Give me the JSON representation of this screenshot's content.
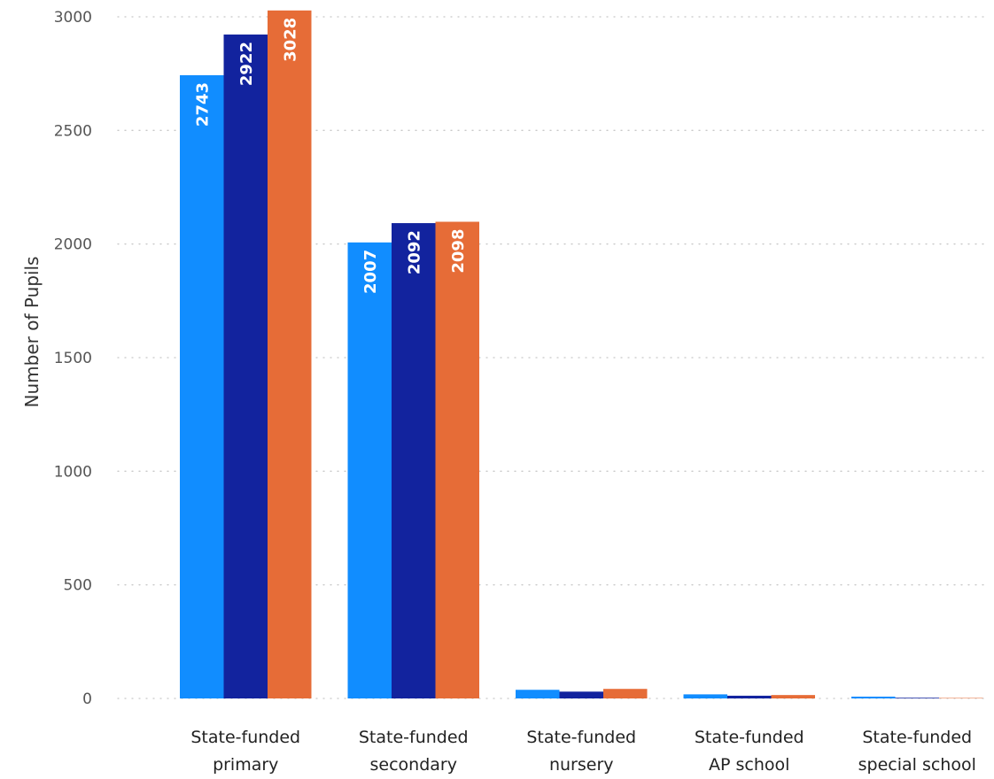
{
  "chart_data": {
    "type": "bar",
    "title": "",
    "xlabel": "",
    "ylabel": "Number of Pupils",
    "ylim": [
      0,
      3000
    ],
    "yticks": [
      0,
      500,
      1000,
      1500,
      2000,
      2500,
      3000
    ],
    "grid": true,
    "legend": "none",
    "categories": [
      [
        "State-funded",
        "primary"
      ],
      [
        "State-funded",
        "secondary"
      ],
      [
        "State-funded",
        "nursery"
      ],
      [
        "State-funded",
        "AP school"
      ],
      [
        "State-funded",
        "special school"
      ]
    ],
    "series": [
      {
        "color": "#118dff",
        "values": [
          2743,
          2007,
          38,
          18,
          8
        ]
      },
      {
        "color": "#12239e",
        "values": [
          2922,
          2092,
          30,
          12,
          3
        ]
      },
      {
        "color": "#e66c37",
        "values": [
          3028,
          2098,
          42,
          15,
          2
        ]
      }
    ],
    "data_labels": [
      [
        "2743",
        "2922",
        "3028"
      ],
      [
        "2007",
        "2092",
        "2098"
      ]
    ]
  }
}
